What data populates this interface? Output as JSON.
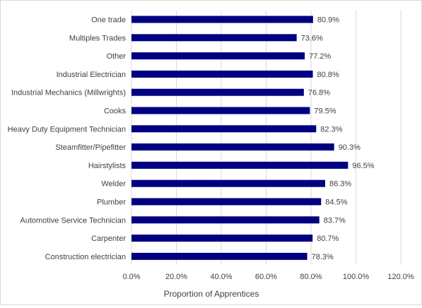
{
  "chart_data": {
    "type": "bar",
    "orientation": "horizontal",
    "title": "",
    "xlabel": "Proportion of Apprentices",
    "ylabel": "",
    "categories": [
      "One trade",
      "Multiples Trades",
      "Other",
      "Industrial Electrician",
      "Industrial Mechanics (Millwrights)",
      "Cooks",
      "Heavy Duty Equipment Technician",
      "Steamfitter/Pipefitter",
      "Hairstylists",
      "Welder",
      "Plumber",
      "Automotive Service Technician",
      "Carpenter",
      "Construction electrician"
    ],
    "values": [
      80.9,
      73.6,
      77.2,
      80.8,
      76.8,
      79.5,
      82.3,
      90.3,
      96.5,
      86.3,
      84.5,
      83.7,
      80.7,
      78.3
    ],
    "data_labels": [
      "80.9%",
      "73.6%",
      "77.2%",
      "80.8%",
      "76.8%",
      "79.5%",
      "82.3%",
      "90.3%",
      "96.5%",
      "86.3%",
      "84.5%",
      "83.7%",
      "80.7%",
      "78.3%"
    ],
    "xlim": [
      0,
      120
    ],
    "x_ticks": [
      "0.0%",
      "20.0%",
      "40.0%",
      "60.0%",
      "80.0%",
      "100.0%",
      "120.0%"
    ],
    "grid": true,
    "legend": "none",
    "bar_color": "#000080",
    "grid_color": "#d9d9d9"
  }
}
